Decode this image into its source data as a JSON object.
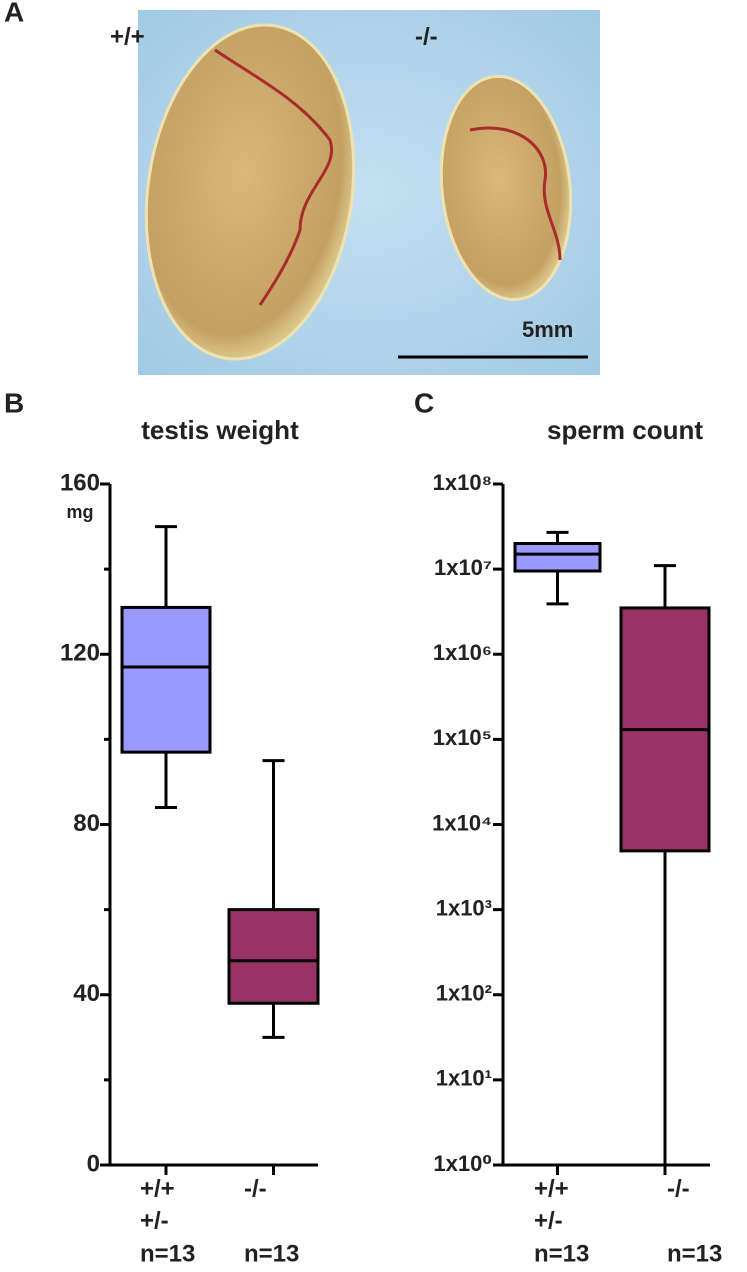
{
  "photo": {
    "panel_label": "A",
    "left_label": "+/+",
    "right_label": "-/-",
    "scale_label": "5mm"
  },
  "chart_data": [
    {
      "type": "box",
      "panel_label": "B",
      "title": "testis weight",
      "unit": "mg",
      "categories": [
        [
          "+/+",
          "+/-",
          "n=13"
        ],
        [
          "-/-",
          "n=13"
        ]
      ],
      "boxes": [
        {
          "min": 84,
          "q1": 97,
          "median": 117,
          "q3": 131,
          "max": 150,
          "color": "#9999ff"
        },
        {
          "min": 30,
          "q1": 38,
          "median": 48,
          "q3": 60,
          "max": 95,
          "color": "#993366"
        }
      ],
      "ylim": [
        0,
        160
      ],
      "yticks": [
        0,
        40,
        80,
        120,
        160
      ],
      "minor_yticks": [
        20,
        60,
        100,
        140
      ],
      "log_scale": false
    },
    {
      "type": "box",
      "panel_label": "C",
      "title": "sperm count",
      "categories": [
        [
          "+/+",
          "+/-",
          "n=13"
        ],
        [
          "-/-",
          "n=13"
        ]
      ],
      "boxes": [
        {
          "min": 3900000,
          "q1": 9500000,
          "median": 15000000,
          "q3": 20000000,
          "max": 27000000,
          "color": "#9999ff"
        },
        {
          "min": 1,
          "q1": 4900,
          "median": 130000,
          "q3": 3500000,
          "max": 11000000,
          "color": "#993366"
        }
      ],
      "ylim": [
        1,
        100000000
      ],
      "yticks": [
        {
          "value": 1,
          "label": "1x10⁰"
        },
        {
          "value": 10,
          "label": "1x10¹"
        },
        {
          "value": 100,
          "label": "1x10²"
        },
        {
          "value": 1000,
          "label": "1x10³"
        },
        {
          "value": 10000,
          "label": "1x10⁴"
        },
        {
          "value": 100000,
          "label": "1x10⁵"
        },
        {
          "value": 1000000,
          "label": "1x10⁶"
        },
        {
          "value": 10000000,
          "label": "1x10⁷"
        },
        {
          "value": 100000000,
          "label": "1x10⁸"
        }
      ],
      "log_scale": true
    }
  ]
}
